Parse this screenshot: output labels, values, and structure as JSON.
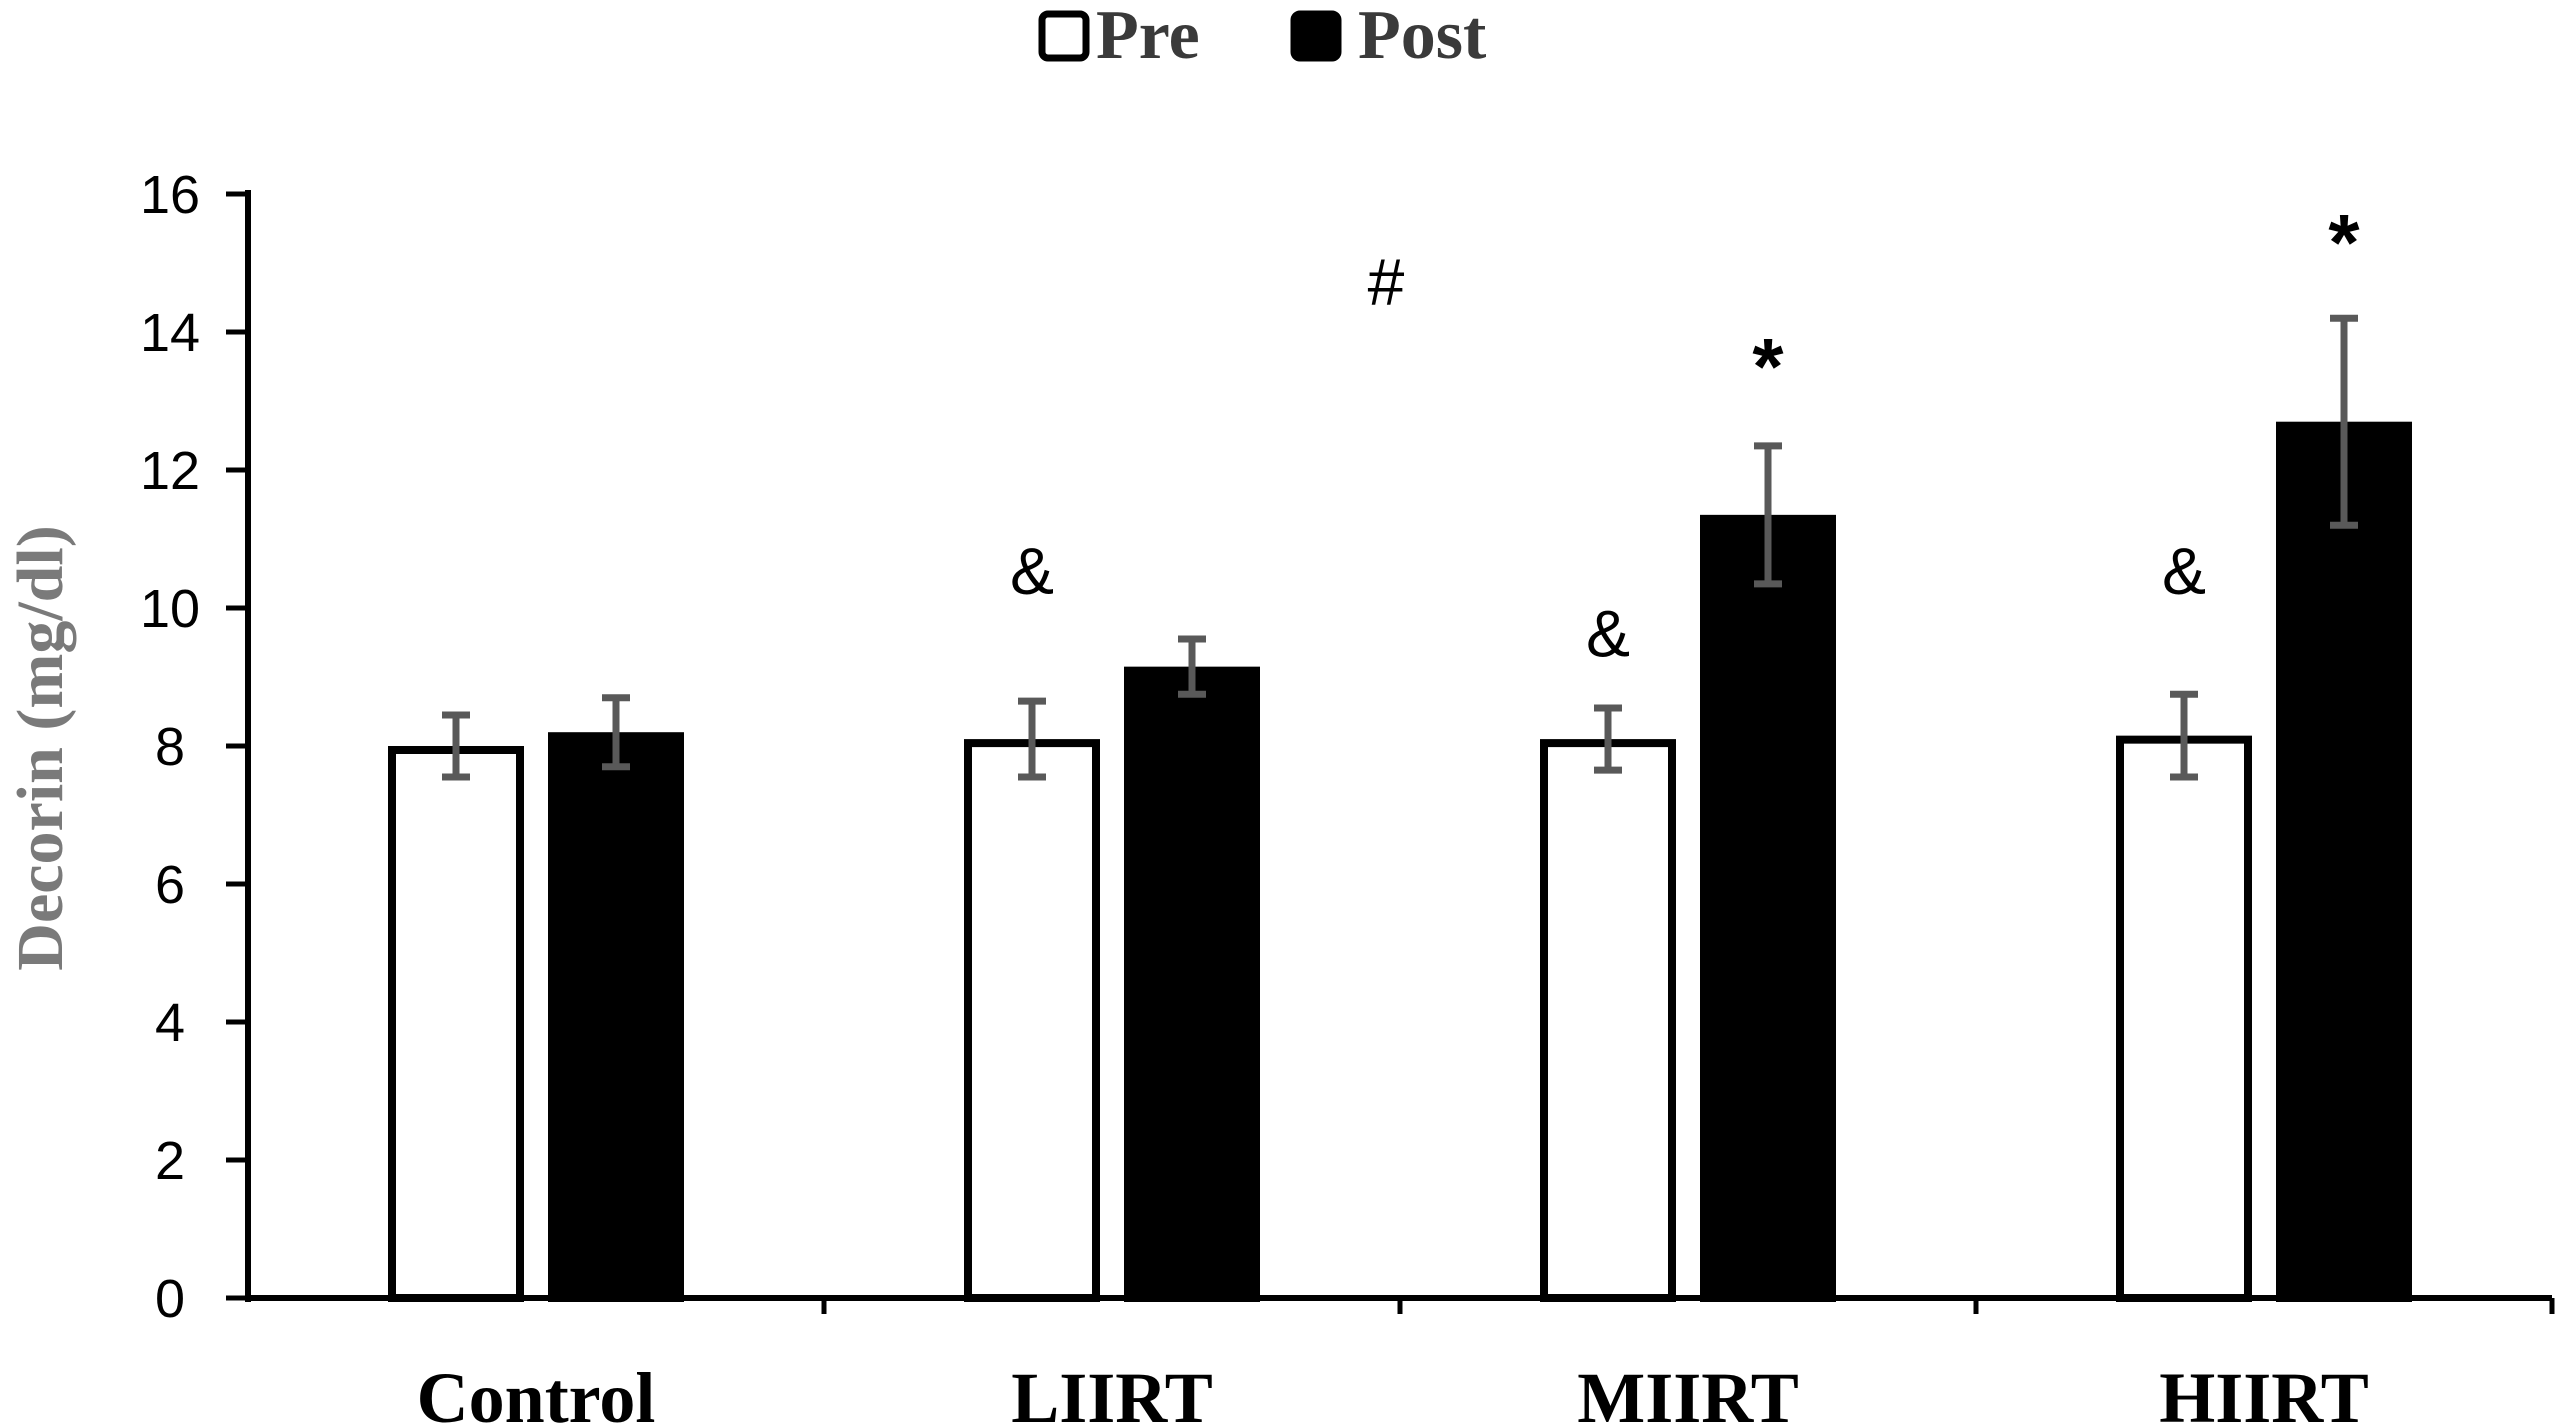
{
  "chart_data": {
    "type": "bar",
    "categories": [
      "Control",
      "LIIRT",
      "MIIRT",
      "HIIRT"
    ],
    "series": [
      {
        "name": "Pre",
        "values": [
          8.0,
          8.1,
          8.1,
          8.15
        ],
        "errors": [
          0.45,
          0.55,
          0.45,
          0.6
        ],
        "fill": "#ffffff",
        "stroke": "#000000"
      },
      {
        "name": "Post",
        "values": [
          8.2,
          9.15,
          11.35,
          12.7
        ],
        "errors": [
          0.5,
          0.4,
          1.0,
          1.5
        ],
        "fill": "#000000",
        "stroke": "#000000"
      }
    ],
    "ylabel": "Decorin (mg/dl)",
    "xlabel": "",
    "ylim": [
      0,
      16
    ],
    "yticks": [
      0,
      2,
      4,
      6,
      8,
      10,
      12,
      14,
      16
    ],
    "grid": false,
    "legend_position": "top-center",
    "error_bar_color": "#595959",
    "annotations": [
      {
        "text": "&",
        "category": "LIIRT",
        "series": "Pre",
        "y": 10.2
      },
      {
        "text": "&",
        "category": "MIIRT",
        "series": "Pre",
        "y": 9.3
      },
      {
        "text": "&",
        "category": "HIIRT",
        "series": "Pre",
        "y": 10.2
      },
      {
        "text": "*",
        "category": "MIIRT",
        "series": "Post",
        "y": 13.1
      },
      {
        "text": "*",
        "category": "HIIRT",
        "series": "Post",
        "y": 14.9
      },
      {
        "text": "#",
        "category": "LIIRT",
        "series": "between",
        "y": 14.4
      }
    ]
  }
}
